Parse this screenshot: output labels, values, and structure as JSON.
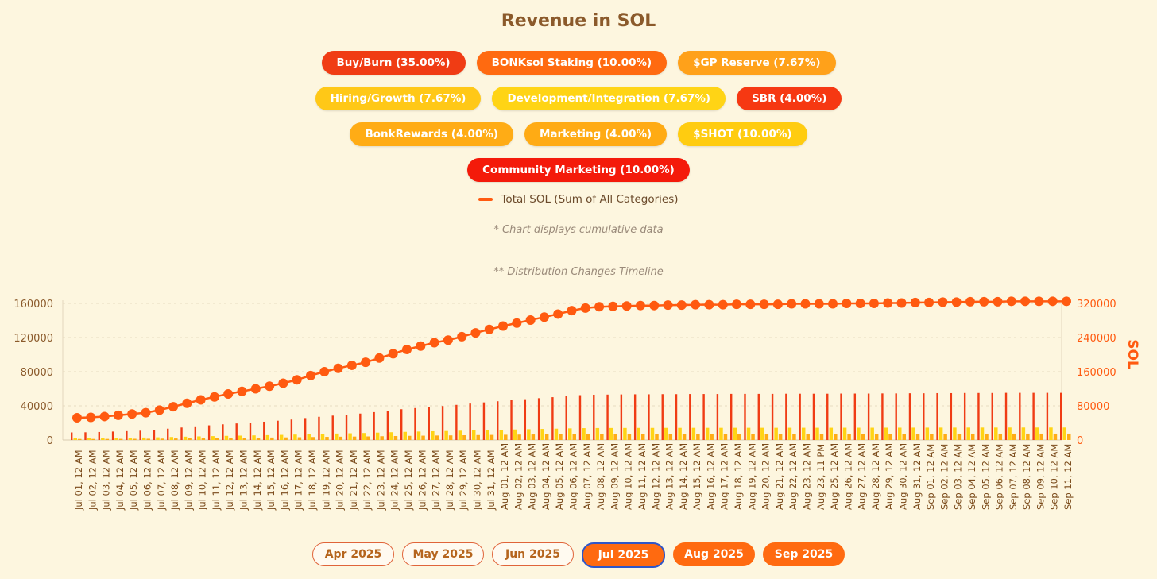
{
  "header": {
    "title": "Revenue in SOL"
  },
  "legend": {
    "categories": [
      {
        "label": "Buy/Burn (35.00%)",
        "color": "#f03c14"
      },
      {
        "label": "BONKsol Staking (10.00%)",
        "color": "#ff6a10"
      },
      {
        "label": "$GP Reserve (7.67%)",
        "color": "#ffa11a"
      },
      {
        "label": "Hiring/Growth (7.67%)",
        "color": "#ffc817"
      },
      {
        "label": "Development/Integration (7.67%)",
        "color": "#ffd415"
      },
      {
        "label": "SBR (4.00%)",
        "color": "#f63812"
      },
      {
        "label": "BonkRewards (4.00%)",
        "color": "#ffac15"
      },
      {
        "label": "Marketing (4.00%)",
        "color": "#ffab14"
      },
      {
        "label": "$SHOT (10.00%)",
        "color": "#ffcc10"
      },
      {
        "label": "Community Marketing (10.00%)",
        "color": "#f41a0a"
      }
    ],
    "line_label": "Total SOL (Sum of All Categories)",
    "line_color": "#ff5a10"
  },
  "notes": {
    "cumulative": "* Chart displays cumulative data",
    "timeline_link": "** Distribution Changes Timeline"
  },
  "months": [
    {
      "label": "Apr 2025",
      "state": "inactive"
    },
    {
      "label": "May 2025",
      "state": "inactive"
    },
    {
      "label": "Jun 2025",
      "state": "inactive"
    },
    {
      "label": "Jul 2025",
      "state": "selected"
    },
    {
      "label": "Aug 2025",
      "state": "active"
    },
    {
      "label": "Sep 2025",
      "state": "active"
    }
  ],
  "chart_data": {
    "type": "bar+line",
    "title": "Revenue in SOL",
    "left_axis": {
      "ticks": [
        "0",
        "40000",
        "80000",
        "120000",
        "160000"
      ],
      "ylim": [
        0,
        160000
      ]
    },
    "right_axis": {
      "label": "SOL",
      "ticks": [
        "0",
        "80000",
        "160000",
        "240000",
        "320000"
      ],
      "ylim": [
        0,
        320000
      ]
    },
    "bar_series_shown": [
      {
        "name": "Buy/Burn",
        "color": "#f03c14",
        "description": "tallest bars, ~35% of total"
      },
      {
        "name": "Development/Integration",
        "color": "#ffd415",
        "description": "mid bars"
      },
      {
        "name": "BonkRewards",
        "color": "#ffac15",
        "description": "small bars"
      }
    ],
    "categories": [
      "Jul 01, 12 AM",
      "Jul 02, 12 AM",
      "Jul 03, 12 AM",
      "Jul 04, 12 AM",
      "Jul 05, 12 AM",
      "Jul 06, 12 AM",
      "Jul 07, 12 AM",
      "Jul 08, 12 AM",
      "Jul 09, 12 AM",
      "Jul 10, 12 AM",
      "Jul 11, 12 AM",
      "Jul 12, 12 AM",
      "Jul 13, 12 AM",
      "Jul 14, 12 AM",
      "Jul 15, 12 AM",
      "Jul 16, 12 AM",
      "Jul 17, 12 AM",
      "Jul 18, 12 AM",
      "Jul 19, 12 AM",
      "Jul 20, 12 AM",
      "Jul 21, 12 AM",
      "Jul 22, 12 AM",
      "Jul 23, 12 AM",
      "Jul 24, 12 AM",
      "Jul 25, 12 AM",
      "Jul 26, 12 AM",
      "Jul 27, 12 AM",
      "Jul 28, 12 AM",
      "Jul 29, 12 AM",
      "Jul 30, 12 AM",
      "Jul 31, 12 AM",
      "Aug 01, 12 AM",
      "Aug 02, 12 AM",
      "Aug 03, 12 AM",
      "Aug 04, 12 AM",
      "Aug 05, 12 AM",
      "Aug 06, 12 AM",
      "Aug 07, 12 AM",
      "Aug 08, 12 AM",
      "Aug 09, 12 AM",
      "Aug 10, 12 AM",
      "Aug 11, 12 AM",
      "Aug 12, 12 AM",
      "Aug 13, 12 AM",
      "Aug 14, 12 AM",
      "Aug 15, 12 AM",
      "Aug 16, 12 AM",
      "Aug 17, 12 AM",
      "Aug 18, 12 AM",
      "Aug 19, 12 AM",
      "Aug 20, 12 AM",
      "Aug 21, 12 AM",
      "Aug 22, 12 AM",
      "Aug 23, 12 AM",
      "Aug 23, 11 PM",
      "Aug 25, 12 AM",
      "Aug 26, 12 AM",
      "Aug 27, 12 AM",
      "Aug 28, 12 AM",
      "Aug 29, 12 AM",
      "Aug 30, 12 AM",
      "Aug 31, 12 AM",
      "Sep 01, 12 AM",
      "Sep 02, 12 AM",
      "Sep 03, 12 AM",
      "Sep 04, 12 AM",
      "Sep 05, 12 AM",
      "Sep 06, 12 AM",
      "Sep 07, 12 AM",
      "Sep 08, 12 AM",
      "Sep 09, 12 AM",
      "Sep 10, 12 AM",
      "Sep 11, 12 AM"
    ],
    "total_cumulative_sol": [
      52000,
      53000,
      55000,
      58000,
      61000,
      64000,
      70000,
      78000,
      86000,
      94000,
      101000,
      108000,
      114000,
      120000,
      126000,
      133000,
      141000,
      151000,
      160000,
      168000,
      175000,
      182000,
      192000,
      202000,
      212000,
      220000,
      228000,
      234000,
      242000,
      251000,
      259000,
      267000,
      274000,
      281000,
      288000,
      295000,
      303000,
      309000,
      312000,
      313000,
      314000,
      315000,
      315000,
      316000,
      316000,
      317000,
      317000,
      317000,
      318000,
      318000,
      318000,
      318000,
      319000,
      319000,
      319000,
      319000,
      320000,
      320000,
      320000,
      321000,
      321000,
      322000,
      322000,
      323000,
      323000,
      324000,
      324000,
      324000,
      325000,
      325000,
      325000,
      325000,
      325000
    ]
  }
}
